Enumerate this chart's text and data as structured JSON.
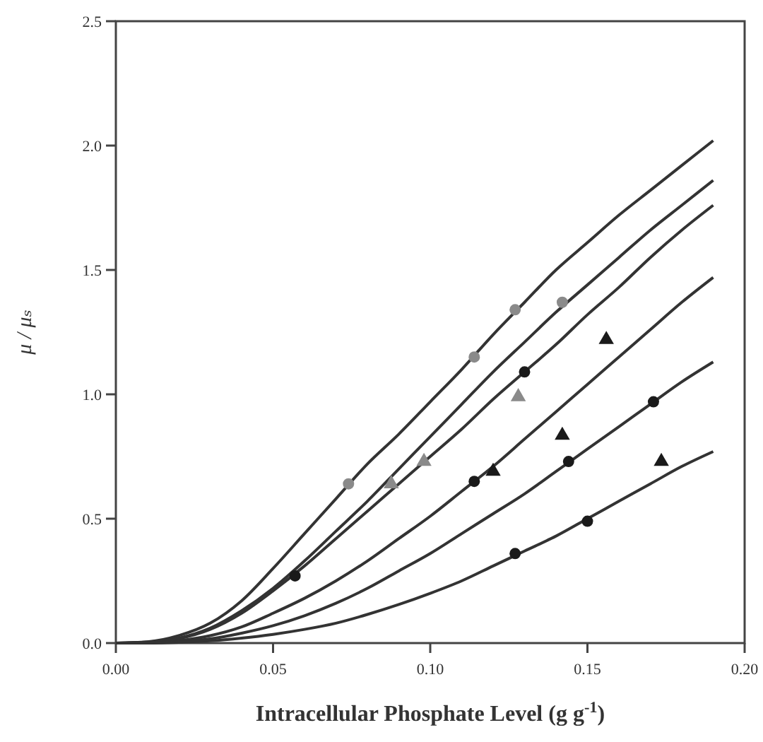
{
  "chart_data": {
    "type": "line",
    "xlabel": "Intracellular Phosphate Level (g g$^{-1}$)",
    "ylabel": "μ / μₛ",
    "xlim": [
      0,
      0.2
    ],
    "ylim": [
      0,
      2.5
    ],
    "xticks": [
      {
        "value": 0,
        "label": "0.00"
      },
      {
        "value": 0.05,
        "label": "0.05"
      },
      {
        "value": 0.1,
        "label": "0.10"
      },
      {
        "value": 0.15,
        "label": "0.15"
      },
      {
        "value": 0.2,
        "label": "0.20"
      }
    ],
    "yticks": [
      {
        "value": 0,
        "label": "0.0"
      },
      {
        "value": 0.5,
        "label": "0.5"
      },
      {
        "value": 1,
        "label": "1.0"
      },
      {
        "value": 1.5,
        "label": "1.5"
      },
      {
        "value": 2,
        "label": "2.0"
      },
      {
        "value": 2.5,
        "label": "2.5"
      }
    ],
    "grid": false,
    "x": [
      0,
      0.01,
      0.02,
      0.03,
      0.04,
      0.05,
      0.06,
      0.07,
      0.08,
      0.09,
      0.1,
      0.11,
      0.12,
      0.13,
      0.14,
      0.15,
      0.16,
      0.17,
      0.18,
      0.19
    ],
    "series": [
      {
        "type": "line",
        "color": "#333333",
        "marker": "none",
        "values": [
          0,
          0.005,
          0.03,
          0.08,
          0.17,
          0.3,
          0.44,
          0.58,
          0.72,
          0.84,
          0.97,
          1.1,
          1.24,
          1.37,
          1.5,
          1.61,
          1.72,
          1.82,
          1.92,
          2.02
        ]
      },
      {
        "type": "line",
        "color": "#333333",
        "marker": "none",
        "values": [
          0,
          0.004,
          0.02,
          0.06,
          0.13,
          0.22,
          0.33,
          0.45,
          0.57,
          0.7,
          0.83,
          0.96,
          1.09,
          1.21,
          1.33,
          1.44,
          1.55,
          1.66,
          1.76,
          1.86
        ]
      },
      {
        "type": "line",
        "color": "#333333",
        "marker": "none",
        "values": [
          0,
          0.003,
          0.018,
          0.055,
          0.12,
          0.21,
          0.31,
          0.42,
          0.53,
          0.64,
          0.75,
          0.86,
          0.98,
          1.09,
          1.2,
          1.32,
          1.43,
          1.55,
          1.66,
          1.76
        ]
      },
      {
        "type": "line",
        "color": "#333333",
        "marker": "none",
        "values": [
          0,
          0.002,
          0.01,
          0.03,
          0.065,
          0.12,
          0.18,
          0.25,
          0.33,
          0.42,
          0.51,
          0.61,
          0.71,
          0.82,
          0.93,
          1.04,
          1.15,
          1.26,
          1.37,
          1.47
        ]
      },
      {
        "type": "line",
        "color": "#333333",
        "marker": "none",
        "values": [
          0,
          0.001,
          0.006,
          0.017,
          0.04,
          0.07,
          0.11,
          0.16,
          0.22,
          0.29,
          0.36,
          0.44,
          0.52,
          0.6,
          0.69,
          0.78,
          0.87,
          0.96,
          1.05,
          1.13
        ]
      },
      {
        "type": "line",
        "color": "#333333",
        "marker": "none",
        "values": [
          0,
          0,
          0.003,
          0.009,
          0.02,
          0.035,
          0.055,
          0.08,
          0.115,
          0.155,
          0.2,
          0.25,
          0.31,
          0.37,
          0.43,
          0.5,
          0.57,
          0.64,
          0.71,
          0.77
        ]
      },
      {
        "type": "scatter",
        "color": "#8a8a8a",
        "marker": "circle",
        "x": [
          0.074,
          0.114,
          0.127,
          0.142
        ],
        "values": [
          0.64,
          1.15,
          1.34,
          1.37
        ]
      },
      {
        "type": "scatter",
        "color": "#8a8a8a",
        "marker": "triangle",
        "x": [
          0.0876,
          0.098,
          0.128
        ],
        "values": [
          0.64,
          0.73,
          0.99
        ]
      },
      {
        "type": "scatter",
        "color": "#1a1a1a",
        "marker": "circle",
        "x": [
          0.057,
          0.13,
          0.114,
          0.144,
          0.171,
          0.15,
          0.127
        ],
        "values": [
          0.27,
          1.09,
          0.65,
          0.73,
          0.97,
          0.49,
          0.36
        ]
      },
      {
        "type": "scatter",
        "color": "#1a1a1a",
        "marker": "triangle",
        "x": [
          0.12,
          0.156,
          0.142,
          0.1735
        ],
        "values": [
          0.69,
          1.22,
          0.835,
          0.73
        ]
      }
    ]
  }
}
